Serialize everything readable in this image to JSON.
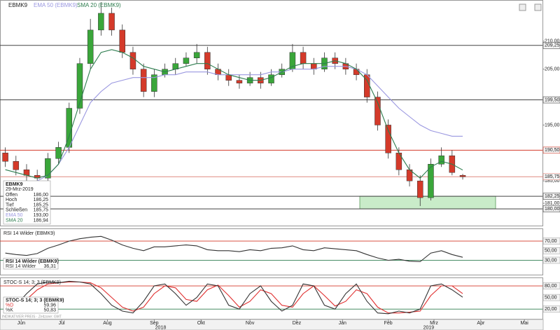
{
  "chart_data": [
    {
      "type": "candlestick",
      "title": "EBMK9",
      "categories": [
        null,
        null,
        null,
        null,
        null,
        null,
        null,
        null,
        null,
        null,
        null,
        null,
        null,
        null,
        null,
        null,
        null,
        null,
        null,
        null,
        null,
        null,
        null,
        null,
        null,
        null,
        null,
        null,
        null,
        null,
        null,
        null,
        null,
        null,
        null,
        null,
        null,
        null,
        null,
        null,
        null,
        null,
        null,
        null
      ],
      "open": [
        190,
        188.5,
        187,
        186,
        185.5,
        189,
        191,
        198,
        206,
        212,
        215,
        212,
        208,
        205,
        201,
        204,
        205,
        206,
        207,
        208,
        205,
        204,
        203,
        202.5,
        203.5,
        202.5,
        204,
        205,
        208,
        206,
        205,
        207,
        206,
        205,
        204,
        200,
        195,
        190,
        187,
        185,
        182,
        188,
        189.5,
        186
      ],
      "high": [
        191,
        189.5,
        188,
        187,
        190,
        192,
        199,
        207,
        214,
        217,
        216,
        213,
        209,
        206,
        205,
        206,
        207,
        208,
        209.5,
        209,
        206,
        205,
        204,
        204.5,
        204.5,
        205,
        206,
        209.5,
        209,
        207,
        208,
        208,
        207,
        206,
        205,
        201,
        196,
        191,
        188,
        186,
        189,
        191,
        190.5,
        186.25
      ],
      "low": [
        187.5,
        186,
        185,
        184.5,
        185,
        188,
        190,
        197,
        205,
        211,
        211,
        207,
        204,
        200,
        200,
        203.5,
        204,
        205.5,
        206,
        204,
        203,
        202,
        201.5,
        202,
        201.5,
        202,
        203.5,
        204.5,
        205,
        204,
        204.5,
        205,
        204,
        203,
        199,
        194,
        189,
        186,
        184,
        180.5,
        181.5,
        187.5,
        186,
        185.25
      ],
      "close": [
        188.5,
        187,
        186,
        185.5,
        189,
        191,
        198,
        206,
        212,
        215,
        212,
        208,
        205,
        201,
        204,
        205,
        206,
        207,
        208,
        205,
        204,
        203,
        202.5,
        203.5,
        202.5,
        204,
        205,
        208,
        206,
        205,
        207,
        206,
        205,
        204,
        200,
        195,
        190,
        187,
        185,
        182,
        188,
        189.5,
        186.5,
        185.75
      ],
      "up_color": "#3aa63a",
      "down_color": "#d43a2a",
      "series": [
        {
          "name": "EMA 50 (EBMK9)",
          "color": "#9a97e0",
          "values": [
            184.5,
            184.5,
            184.5,
            185,
            186,
            188,
            191,
            195,
            199,
            201,
            202.5,
            203,
            203.5,
            203.5,
            203.5,
            204,
            204,
            204.5,
            204.5,
            204.5,
            204,
            204,
            204,
            204,
            204,
            204.5,
            204.5,
            205,
            205,
            205,
            205.5,
            205.5,
            205.5,
            205,
            204,
            202,
            200,
            198,
            196.5,
            195,
            194,
            193.5,
            193,
            193
          ]
        },
        {
          "name": "SMA 20 (EBMK9)",
          "color": "#2e7d4f",
          "values": [
            187,
            186.5,
            186,
            185.5,
            186,
            188,
            193,
            199,
            205,
            208,
            208.5,
            208,
            207,
            205.5,
            205,
            204.5,
            205,
            205.5,
            206,
            206,
            205,
            204,
            203.5,
            203,
            203,
            203.5,
            204.5,
            205.5,
            206,
            206,
            206,
            206.5,
            206,
            205,
            203,
            199,
            194,
            190,
            187,
            185.5,
            187.5,
            188.5,
            188,
            186.94
          ]
        }
      ],
      "xlim": [
        -0.5,
        50.5
      ],
      "xticks": [
        {
          "value": 1.5,
          "label": "Jun"
        },
        {
          "value": 5.3,
          "label": "Jul"
        },
        {
          "value": 9.6,
          "label": "Aug"
        },
        {
          "value": 14,
          "label": "Sep"
        },
        {
          "value": 18.4,
          "label": "Okt"
        },
        {
          "value": 23,
          "label": "Nov"
        },
        {
          "value": 27.4,
          "label": "Dez"
        },
        {
          "value": 31.7,
          "label": "Jan"
        },
        {
          "value": 36,
          "label": "Feb"
        },
        {
          "value": 40.3,
          "label": "Mrz"
        },
        {
          "value": 44.7,
          "label": "Apr"
        },
        {
          "value": 48.8,
          "label": "Mai"
        }
      ],
      "xticks2": [
        {
          "value": 14.6,
          "label": "2018"
        },
        {
          "value": 39.8,
          "label": "2019"
        }
      ],
      "ylim": [
        177,
        217.25
      ],
      "yticks": [
        {
          "value": 210,
          "label": "210,00"
        },
        {
          "value": 205,
          "label": "205,00"
        },
        {
          "value": 195,
          "label": "195,00"
        },
        {
          "value": 185,
          "label": "185,00"
        },
        {
          "value": 181,
          "label": "181,00"
        }
      ],
      "levels": [
        {
          "value": 209.25,
          "label": "209,25",
          "color": "#444"
        },
        {
          "value": 199.5,
          "label": "199,50",
          "color": "#444"
        },
        {
          "value": 190.5,
          "label": "190,50",
          "color": "#d43a2a"
        },
        {
          "value": 185.75,
          "label": "185,75",
          "color": "#e08a80"
        },
        {
          "value": 182.25,
          "label": "182,25",
          "color": "#444"
        },
        {
          "value": 180,
          "label": "180,00",
          "color": "#444"
        }
      ],
      "zone": {
        "low": 180,
        "high": 182.25,
        "color": "#c9ecc9"
      },
      "info": {
        "title": "EBMK9",
        "date": "29-Mrz-2019",
        "rows": [
          {
            "label": "Offen",
            "value": "186,00"
          },
          {
            "label": "Hoch",
            "value": "186,25"
          },
          {
            "label": "Tief",
            "value": "185,25"
          },
          {
            "label": "Schließen",
            "value": "185,75"
          },
          {
            "label": "EMA 50",
            "value": "193,00"
          },
          {
            "label": "SMA 20",
            "value": "186,94"
          }
        ]
      },
      "footer": "INDIKATIVER PREIS · Zeitzone: GMT"
    },
    {
      "type": "line",
      "title": "RSI 14 Wilder (EBMK9)",
      "series": [
        {
          "name": "RSI 14 Wilder",
          "color": "#333",
          "values": [
            45,
            42,
            40,
            44,
            55,
            62,
            70,
            75,
            78,
            80,
            72,
            62,
            55,
            50,
            58,
            58,
            60,
            62,
            60,
            52,
            50,
            50,
            48,
            52,
            50,
            55,
            56,
            60,
            52,
            50,
            56,
            54,
            52,
            50,
            42,
            35,
            30,
            32,
            28,
            27,
            45,
            50,
            42,
            36.31
          ],
          "value_label": "36,31"
        }
      ],
      "ylim": [
        0,
        95
      ],
      "yticks": [
        {
          "value": 70,
          "label": "70,00"
        },
        {
          "value": 50,
          "label": "50,00"
        },
        {
          "value": 30,
          "label": "30,00"
        }
      ],
      "levels": [
        {
          "value": 70,
          "color": "#d43a2a"
        },
        {
          "value": 30,
          "color": "#2e7d4f"
        }
      ]
    },
    {
      "type": "line",
      "title": "STOC-S 14; 3; 3 (EBMK9)",
      "series": [
        {
          "name": "%D",
          "color": "#e03030",
          "values": [
            25,
            28,
            45,
            70,
            85,
            88,
            90,
            90,
            88,
            75,
            50,
            25,
            15,
            25,
            60,
            80,
            75,
            45,
            40,
            70,
            82,
            55,
            25,
            40,
            70,
            60,
            30,
            25,
            60,
            80,
            55,
            28,
            40,
            70,
            60,
            25,
            10,
            10,
            12,
            15,
            55,
            80,
            80,
            59.96
          ],
          "value_label": "59,96"
        },
        {
          "name": "%K",
          "color": "#333",
          "values": [
            20,
            30,
            60,
            85,
            90,
            88,
            92,
            90,
            85,
            60,
            30,
            15,
            10,
            40,
            80,
            85,
            60,
            30,
            50,
            85,
            80,
            30,
            20,
            60,
            80,
            40,
            15,
            30,
            85,
            80,
            30,
            20,
            60,
            85,
            40,
            10,
            8,
            15,
            10,
            20,
            80,
            85,
            70,
            50.83
          ],
          "value_label": "50,83"
        }
      ],
      "ylim": [
        -5,
        100
      ],
      "yticks": [
        {
          "value": 80,
          "label": "80,00"
        },
        {
          "value": 50,
          "label": "50,00"
        },
        {
          "value": 20,
          "label": "20,00"
        }
      ],
      "levels": [
        {
          "value": 80,
          "color": "#d43a2a"
        },
        {
          "value": 20,
          "color": "#2e7d4f"
        }
      ]
    }
  ]
}
